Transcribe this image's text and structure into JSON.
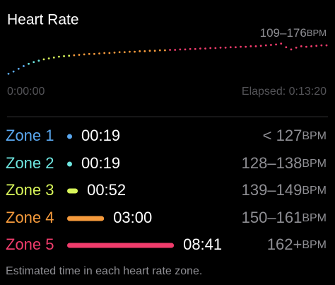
{
  "header": {
    "title": "Heart Rate",
    "range": "109–176",
    "range_unit": "BPM"
  },
  "chart": {
    "type": "scatter",
    "ylim": [
      100,
      210
    ],
    "values": [
      109,
      114,
      120,
      126,
      131,
      135,
      138,
      141,
      143,
      145,
      147,
      148,
      149,
      150,
      151,
      152,
      153,
      153,
      154,
      155,
      155,
      156,
      157,
      157,
      158,
      158,
      159,
      159,
      160,
      160,
      161,
      161,
      162,
      162,
      163,
      163,
      164,
      164,
      165,
      165,
      166,
      166,
      167,
      167,
      168,
      168,
      169,
      169,
      170,
      170,
      171,
      172,
      173,
      174,
      176,
      168,
      163,
      167,
      170,
      169,
      170,
      171,
      172,
      172
    ],
    "start_label": "0:00:00",
    "end_label": "Elapsed: 0:13:20"
  },
  "zones": [
    {
      "name": "Zone 1",
      "time": "00:19",
      "range": "< 127",
      "unit": "BPM",
      "color": "#5aa8f0"
    },
    {
      "name": "Zone 2",
      "time": "00:19",
      "range": "128–138",
      "unit": "BPM",
      "color": "#6ee6e0"
    },
    {
      "name": "Zone 3",
      "time": "00:52",
      "range": "139–149",
      "unit": "BPM",
      "color": "#d8f55a"
    },
    {
      "name": "Zone 4",
      "time": "03:00",
      "range": "150–161",
      "unit": "BPM",
      "color": "#f59a3c"
    },
    {
      "name": "Zone 5",
      "time": "08:41",
      "range": "162+",
      "unit": "BPM",
      "color": "#f03c6c"
    }
  ],
  "footer": "Estimated time in each heart rate zone."
}
